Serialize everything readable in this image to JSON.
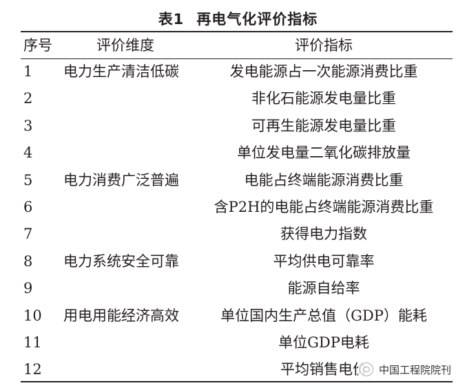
{
  "table": {
    "title_number": "表1",
    "title": "再电气化评价指标",
    "headers": [
      "序号",
      "评价维度",
      "评价指标"
    ],
    "rows": [
      {
        "no": "1",
        "dimension": "电力生产清洁低碳",
        "indicator": "发电能源占一次能源消费比重"
      },
      {
        "no": "2",
        "dimension": "",
        "indicator": "非化石能源发电量比重"
      },
      {
        "no": "3",
        "dimension": "",
        "indicator": "可再生能源发电量比重"
      },
      {
        "no": "4",
        "dimension": "",
        "indicator": "单位发电量二氧化碳排放量"
      },
      {
        "no": "5",
        "dimension": "电力消费广泛普遍",
        "indicator": "电能占终端能源消费比重"
      },
      {
        "no": "6",
        "dimension": "",
        "indicator": "含P2H的电能占终端能源消费比重"
      },
      {
        "no": "7",
        "dimension": "",
        "indicator": "获得电力指数"
      },
      {
        "no": "8",
        "dimension": "电力系统安全可靠",
        "indicator": "平均供电可靠率"
      },
      {
        "no": "9",
        "dimension": "",
        "indicator": "能源自给率"
      },
      {
        "no": "10",
        "dimension": "用电用能经济高效",
        "indicator": "单位国内生产总值（GDP）能耗"
      },
      {
        "no": "11",
        "dimension": "",
        "indicator": "单位GDP电耗"
      },
      {
        "no": "12",
        "dimension": "",
        "indicator": "平均销售电价"
      }
    ]
  },
  "watermark": {
    "icon": "wechat-icon",
    "text": "中国工程院院刊"
  }
}
